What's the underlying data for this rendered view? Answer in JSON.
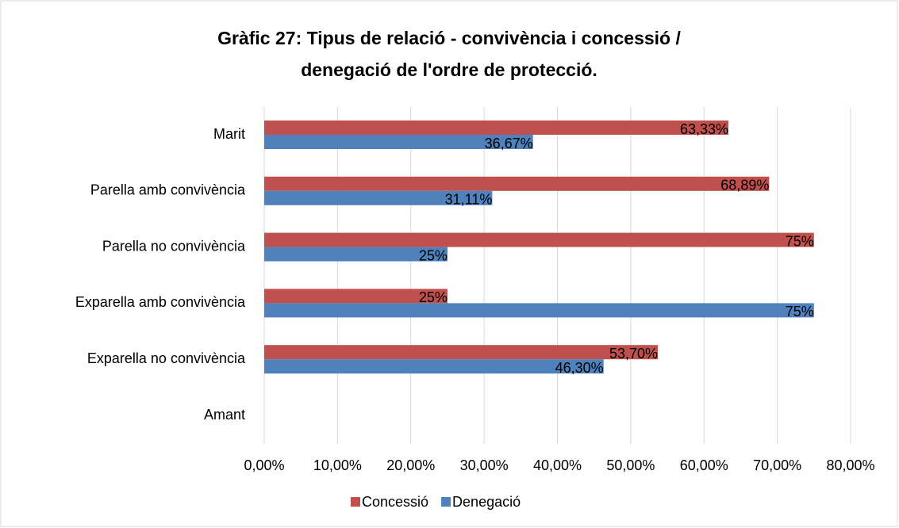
{
  "chart_data": {
    "type": "hbar",
    "title": [
      "Gràfic 27: Tipus de relació - convivència i concessió /",
      "denegació de l'ordre de protecció."
    ],
    "categories": [
      "Marit",
      "Parella amb convivència",
      "Parella no convivència",
      "Exparella amb convivència",
      "Exparella no convivència",
      "Amant"
    ],
    "series": [
      {
        "name": "Concessió",
        "color": "#c0504d",
        "values": [
          63.33,
          68.89,
          75,
          25,
          53.7,
          null
        ],
        "value_labels": [
          "63,33%",
          "68,89%",
          "75%",
          "25%",
          "53,70%",
          null
        ]
      },
      {
        "name": "Denegació",
        "color": "#4f81bd",
        "values": [
          36.67,
          31.11,
          25,
          75,
          46.3,
          null
        ],
        "value_labels": [
          "36,67%",
          "31,11%",
          "25%",
          "75%",
          "46,30%",
          null
        ]
      }
    ],
    "xlim": [
      0,
      80
    ],
    "xticks": [
      {
        "value": 0,
        "label": "0,00%"
      },
      {
        "value": 10,
        "label": "10,00%"
      },
      {
        "value": 20,
        "label": "20,00%"
      },
      {
        "value": 30,
        "label": "30,00%"
      },
      {
        "value": 40,
        "label": "40,00%"
      },
      {
        "value": 50,
        "label": "50,00%"
      },
      {
        "value": 60,
        "label": "60,00%"
      },
      {
        "value": 70,
        "label": "70,00%"
      },
      {
        "value": 80,
        "label": "80,00%"
      }
    ],
    "grid": true,
    "legend": "bottom"
  }
}
